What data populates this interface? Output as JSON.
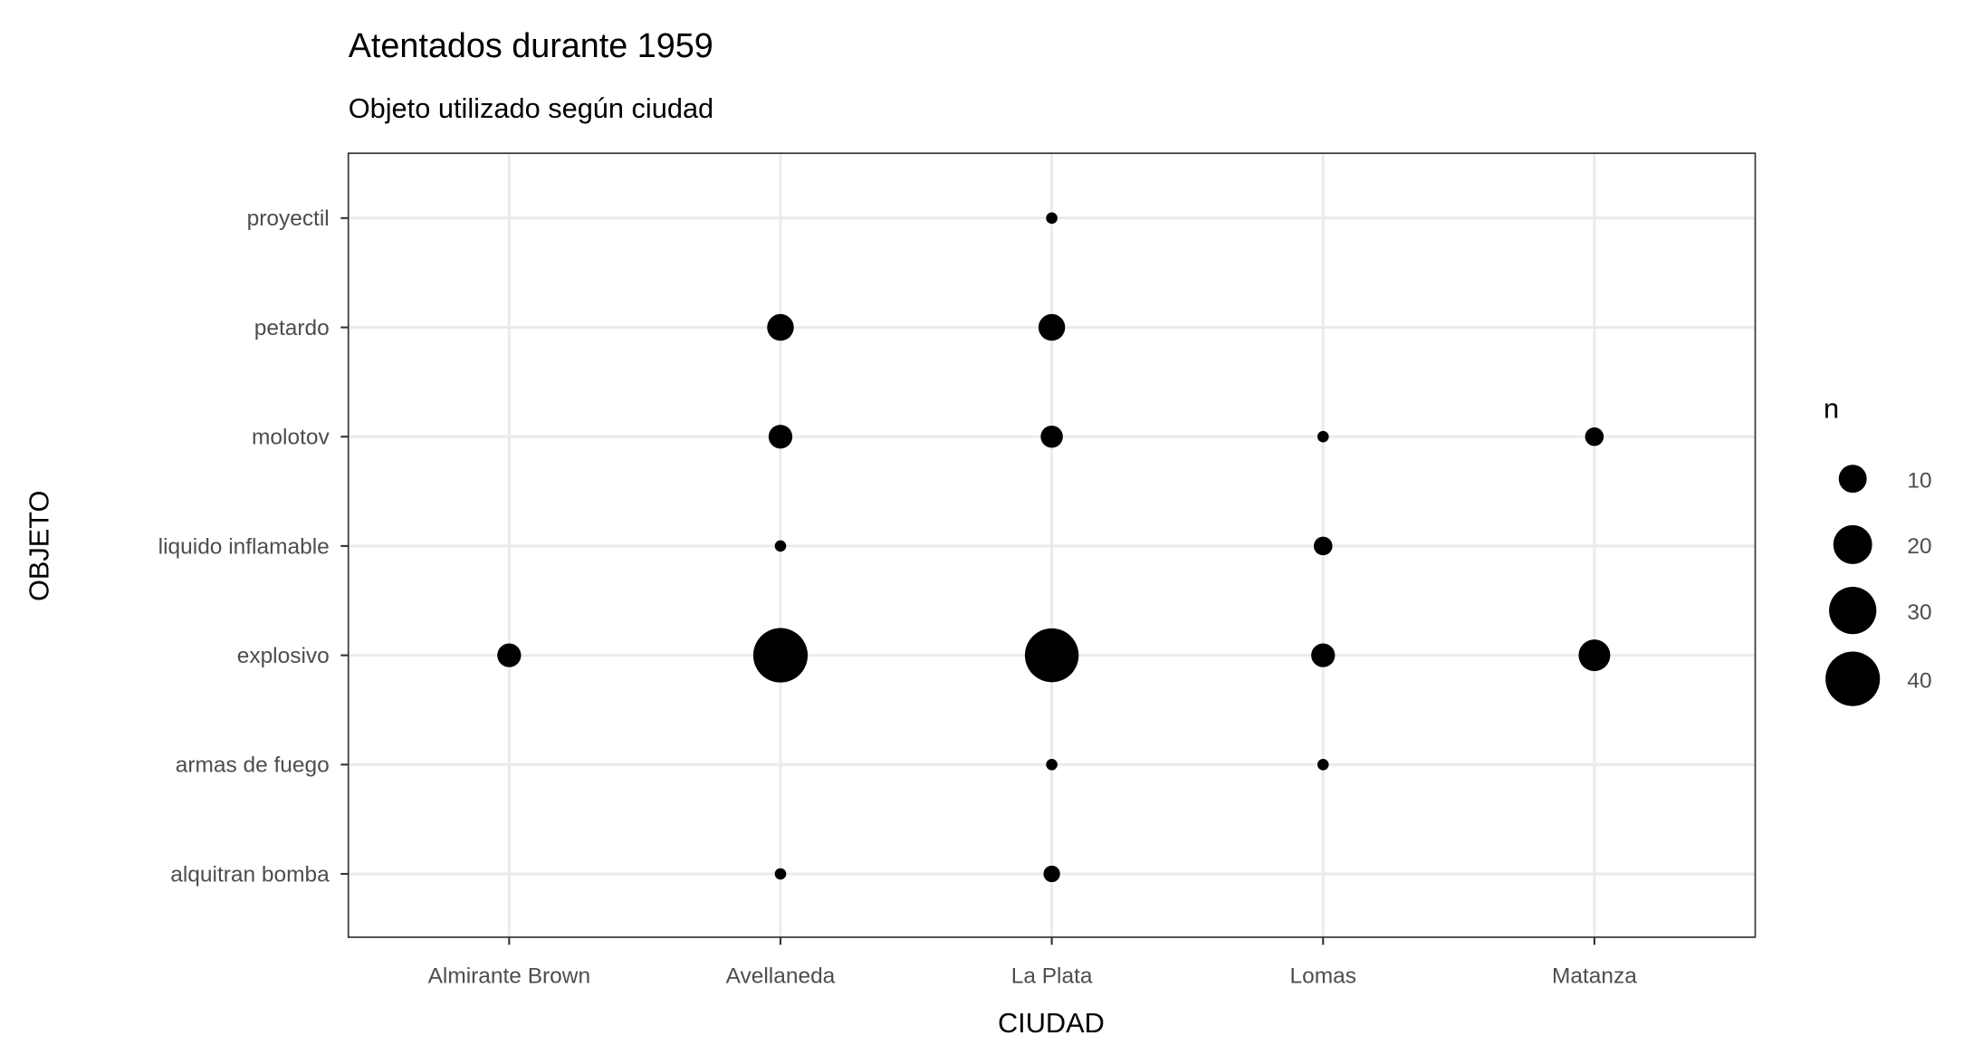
{
  "chart_data": {
    "type": "scatter",
    "title": "Atentados durante 1959",
    "subtitle": "Objeto utilizado según ciudad",
    "xlabel": "CIUDAD",
    "ylabel": "OBJETO",
    "x_categories": [
      "Almirante Brown",
      "Avellaneda",
      "La Plata",
      "Lomas",
      "Matanza"
    ],
    "y_categories": [
      "alquitran bomba",
      "armas de fuego",
      "explosivo",
      "liquido inflamable",
      "molotov",
      "petardo",
      "proyectil"
    ],
    "size_legend": {
      "title": "n",
      "breaks": [
        10,
        20,
        30,
        40
      ]
    },
    "grid": true,
    "legend_position": "right",
    "point_color": "#000000",
    "points": [
      {
        "x": "La Plata",
        "y": "proyectil",
        "n": 1
      },
      {
        "x": "Avellaneda",
        "y": "petardo",
        "n": 9
      },
      {
        "x": "La Plata",
        "y": "petardo",
        "n": 9
      },
      {
        "x": "Avellaneda",
        "y": "molotov",
        "n": 7
      },
      {
        "x": "La Plata",
        "y": "molotov",
        "n": 6
      },
      {
        "x": "Lomas",
        "y": "molotov",
        "n": 1
      },
      {
        "x": "Matanza",
        "y": "molotov",
        "n": 4
      },
      {
        "x": "Avellaneda",
        "y": "liquido inflamable",
        "n": 1
      },
      {
        "x": "Lomas",
        "y": "liquido inflamable",
        "n": 4
      },
      {
        "x": "Almirante Brown",
        "y": "explosivo",
        "n": 7
      },
      {
        "x": "Avellaneda",
        "y": "explosivo",
        "n": 40
      },
      {
        "x": "La Plata",
        "y": "explosivo",
        "n": 39
      },
      {
        "x": "Lomas",
        "y": "explosivo",
        "n": 7
      },
      {
        "x": "Matanza",
        "y": "explosivo",
        "n": 13
      },
      {
        "x": "La Plata",
        "y": "armas de fuego",
        "n": 1
      },
      {
        "x": "Lomas",
        "y": "armas de fuego",
        "n": 1
      },
      {
        "x": "Avellaneda",
        "y": "alquitran bomba",
        "n": 1
      },
      {
        "x": "La Plata",
        "y": "alquitran bomba",
        "n": 3
      }
    ]
  }
}
